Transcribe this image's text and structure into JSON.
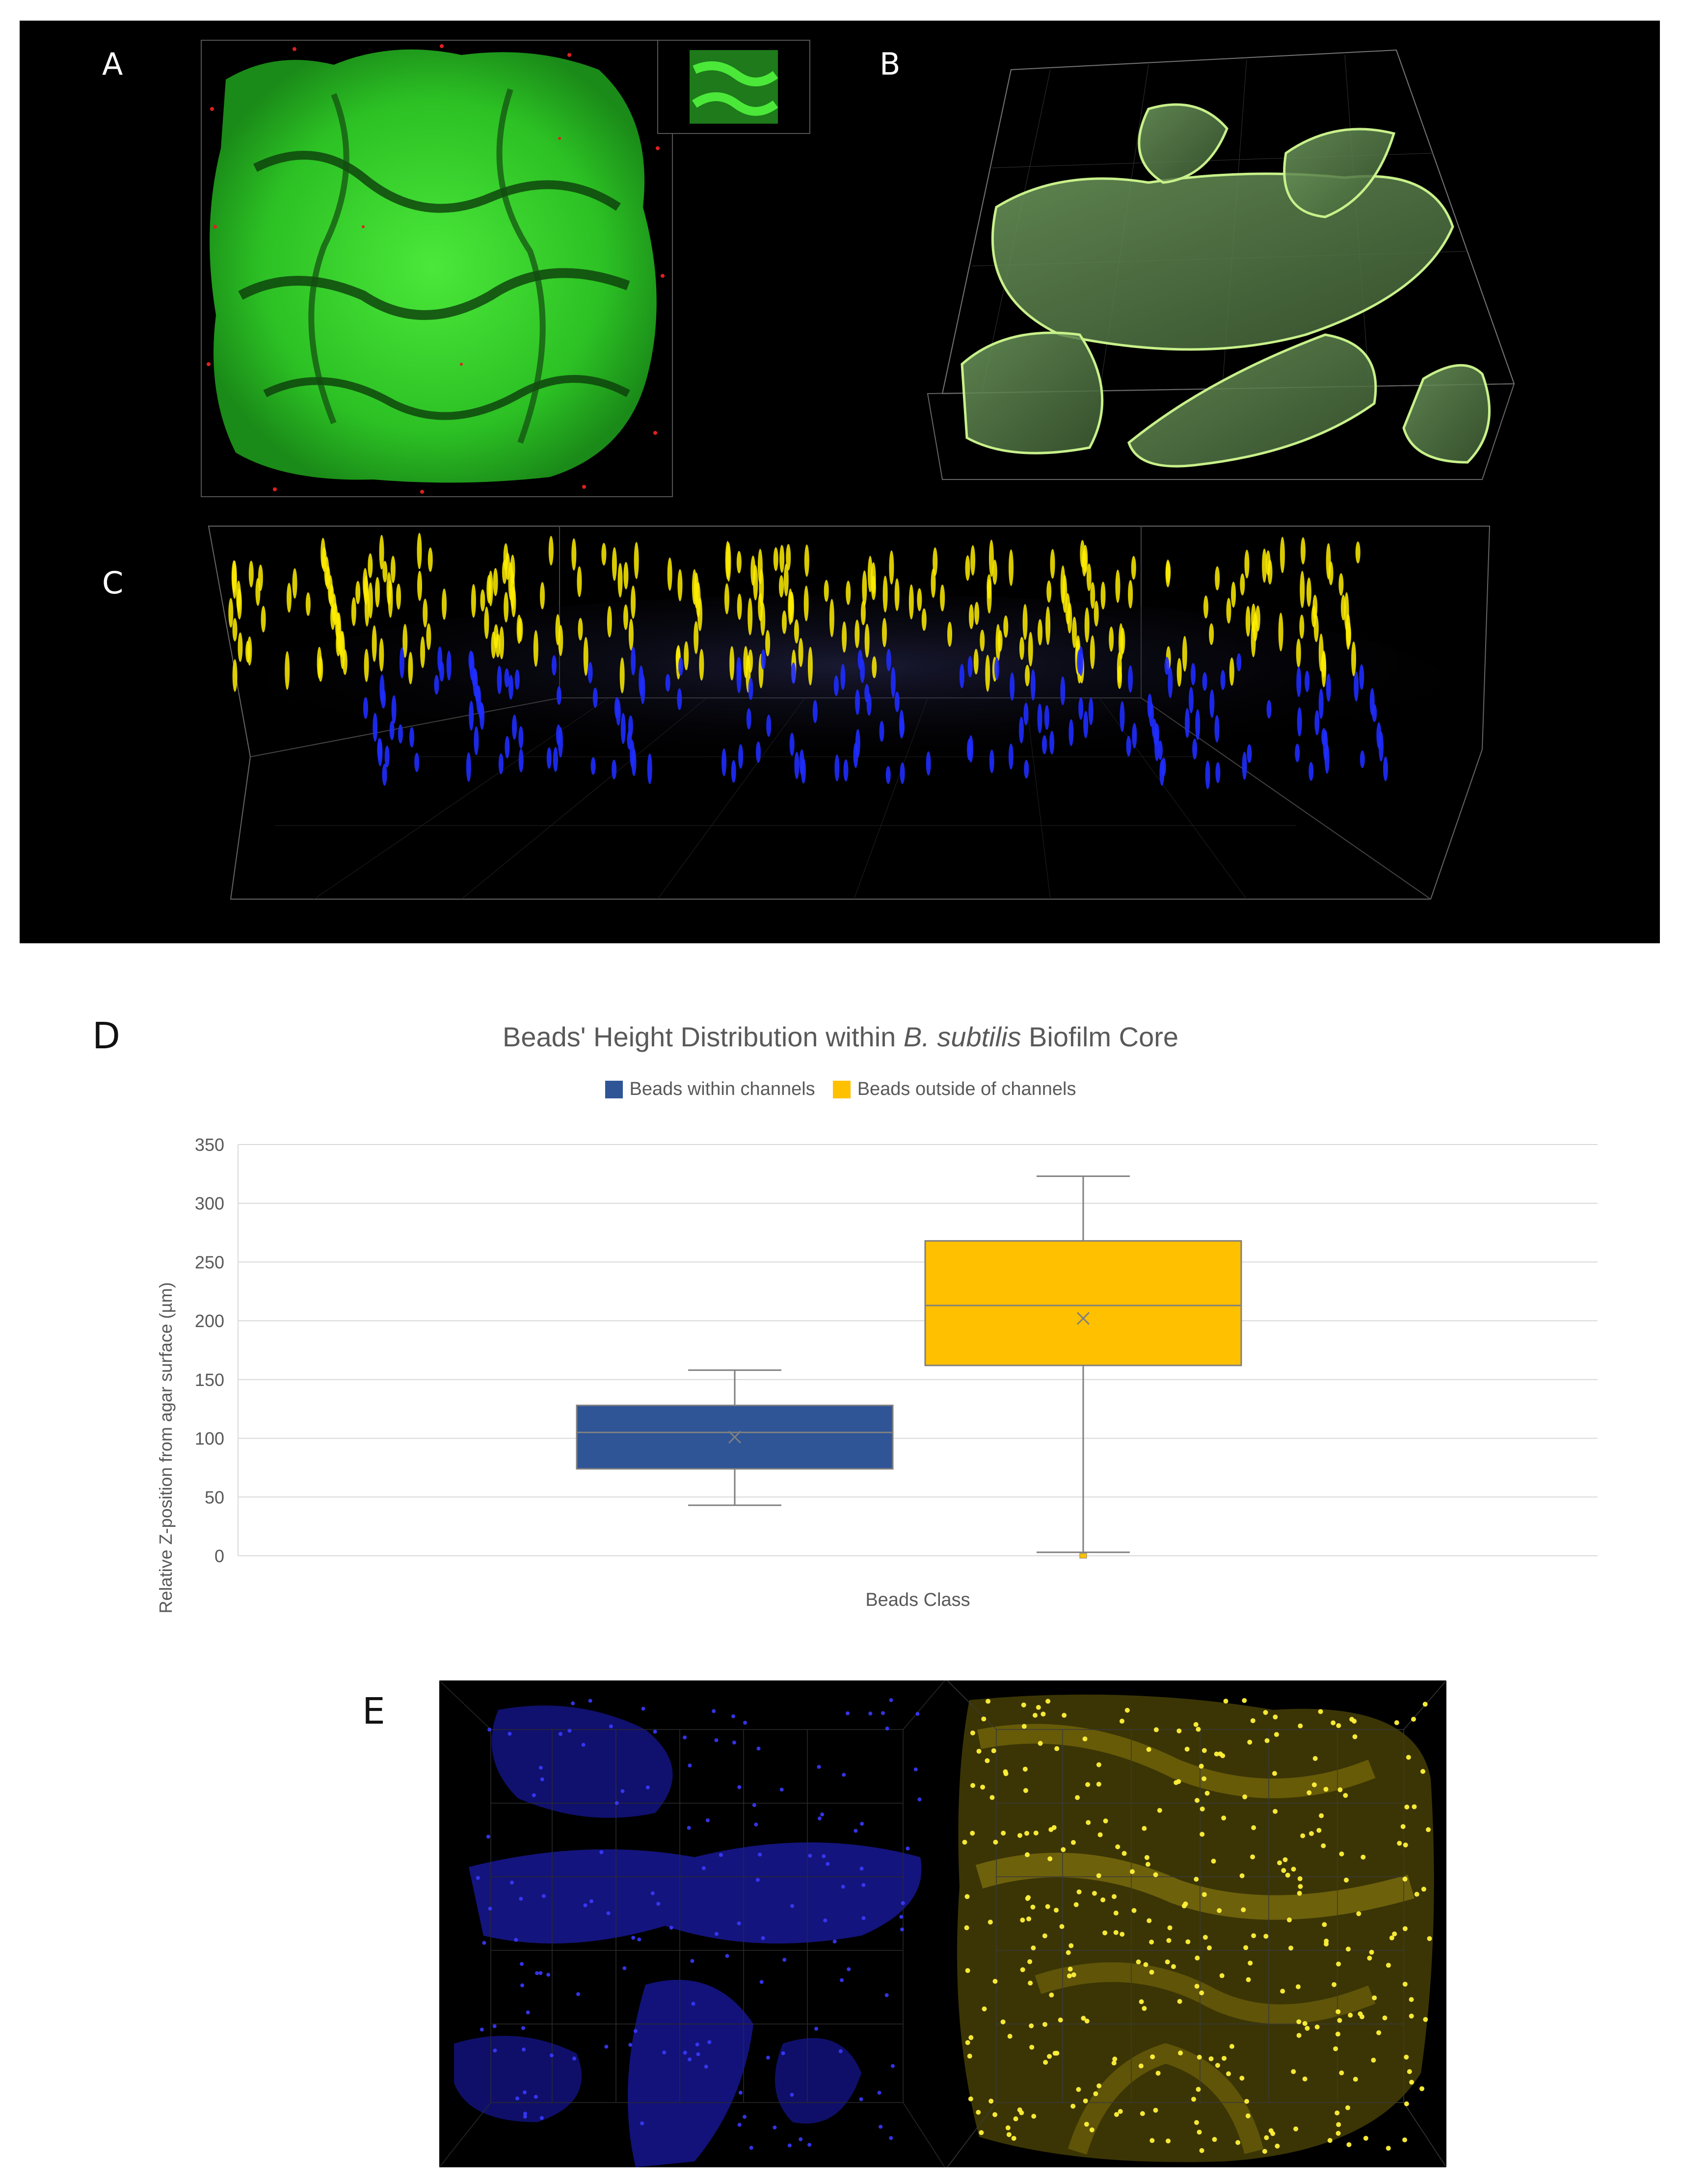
{
  "panels": {
    "a": "A",
    "b": "B",
    "c": "C",
    "d": "D",
    "e": "E"
  },
  "chart_data": {
    "type": "box",
    "title_pre": "Beads' Height Distribution within ",
    "title_ital": "B. subtilis",
    "title_post": " Biofilm Core",
    "xlabel": "Beads Class",
    "ylabel": "Relative Z-position from agar surface (µm)",
    "ylim": [
      0,
      350
    ],
    "yticks": [
      0,
      50,
      100,
      150,
      200,
      250,
      300,
      350
    ],
    "grid": true,
    "legend": "top",
    "series": [
      {
        "name": "Beads within channels",
        "color": "#2f5597",
        "min": 43,
        "q1": 74,
        "median": 105,
        "q3": 128,
        "max": 158,
        "mean": 101,
        "outliers": []
      },
      {
        "name": "Beads outside of channels",
        "color": "#ffc000",
        "min": 3,
        "q1": 162,
        "median": 213,
        "q3": 268,
        "max": 323,
        "mean": 202,
        "outliers": [
          0
        ]
      }
    ]
  },
  "colors": {
    "biofilm_green": "#2fd02a",
    "surface_green": "#8fd17a",
    "bead_yellow": "#ffef00",
    "bead_blue": "#1f2cff",
    "e_blue": "#1a1aa8",
    "e_yellow": "#b3a000"
  }
}
